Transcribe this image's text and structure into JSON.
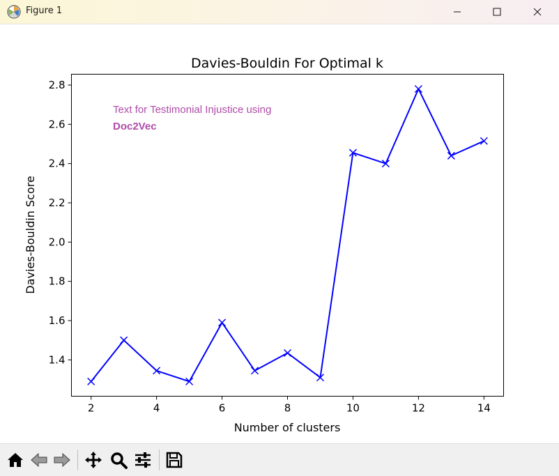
{
  "window": {
    "title": "Figure 1",
    "app_icon": "matplotlib-figure-icon",
    "controls": [
      "minimize-icon",
      "maximize-icon",
      "close-icon"
    ]
  },
  "annotation": {
    "line1": "Text for Testimonial Injustice using",
    "line2": "Doc2Vec",
    "color": "#b04aa8"
  },
  "toolbar": {
    "buttons": [
      "home-icon",
      "back-icon",
      "forward-icon",
      "pan-icon",
      "zoom-icon",
      "configure-subplots-icon",
      "save-icon"
    ]
  },
  "colors": {
    "line": "#0000ff",
    "axes": "#000000",
    "titlebar": "#fbf4e4"
  },
  "chart_data": {
    "type": "line",
    "title": "Davies-Bouldin For Optimal k",
    "xlabel": "Number of clusters",
    "ylabel": "Davies-Bouldin Score",
    "x": [
      2,
      3,
      4,
      5,
      6,
      7,
      8,
      9,
      10,
      11,
      12,
      13,
      14
    ],
    "series": [
      {
        "values": [
          1.29,
          1.5,
          1.345,
          1.29,
          1.59,
          1.345,
          1.435,
          1.31,
          2.455,
          2.4,
          2.78,
          2.44,
          2.515
        ],
        "marker": "x",
        "color": "#0000ff"
      }
    ],
    "xlim": [
      1.4,
      14.6
    ],
    "ylim": [
      1.215,
      2.855
    ],
    "xticks": [
      "2",
      "4",
      "6",
      "8",
      "10",
      "12",
      "14"
    ],
    "yticks": [
      "1.4",
      "1.6",
      "1.8",
      "2.0",
      "2.2",
      "2.4",
      "2.6",
      "2.8"
    ],
    "grid": false,
    "legend": "none"
  }
}
